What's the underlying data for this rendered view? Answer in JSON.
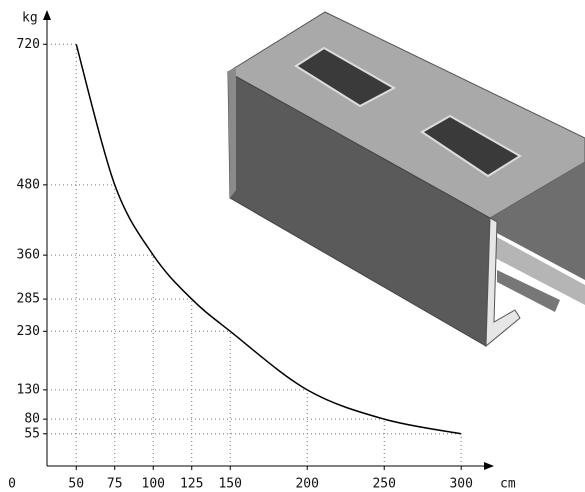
{
  "chart_data": {
    "type": "line",
    "y_label": "kg",
    "x_label": "cm",
    "origin_label": "0",
    "x": [
      50,
      75,
      100,
      125,
      150,
      200,
      250,
      300
    ],
    "series": [
      {
        "color": "#000000",
        "values": [
          720,
          480,
          360,
          285,
          230,
          130,
          80,
          55
        ]
      }
    ],
    "xlim": [
      31,
      320
    ],
    "ylim": [
      0,
      770
    ],
    "xticks": [
      50,
      75,
      100,
      125,
      150,
      200,
      250,
      300
    ],
    "yticks": [
      720,
      480,
      360,
      285,
      230,
      130,
      80,
      55
    ],
    "grid": true
  }
}
